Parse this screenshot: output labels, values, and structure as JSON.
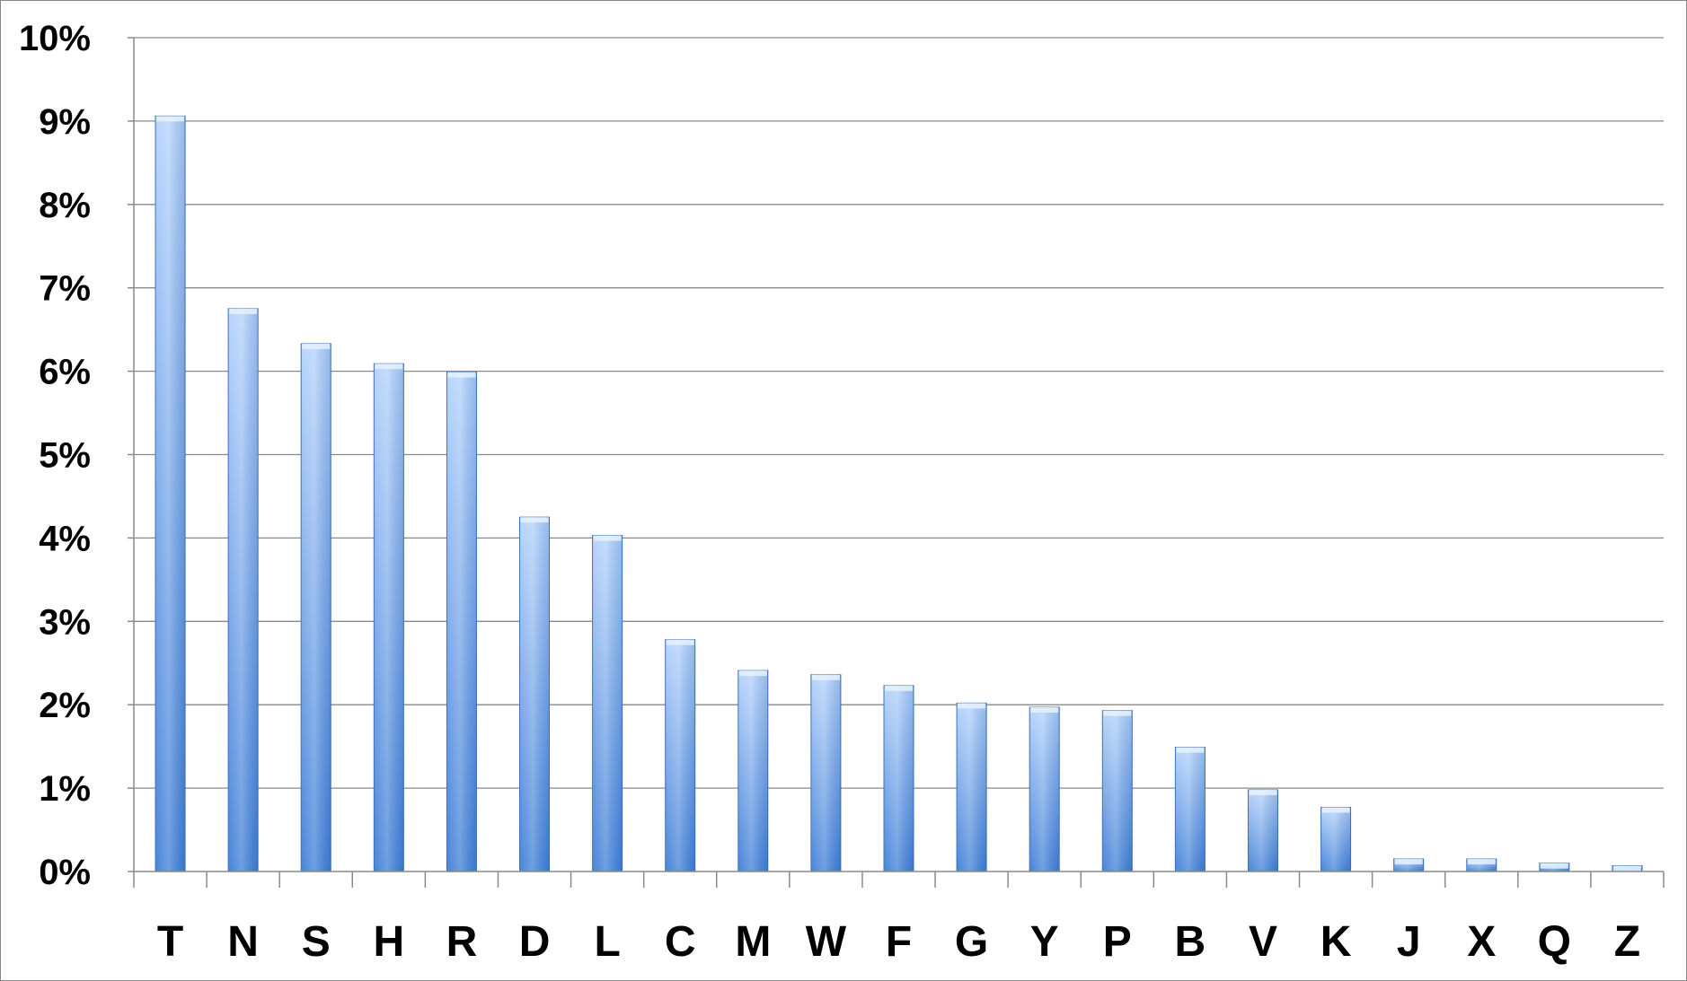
{
  "chart_data": {
    "type": "bar",
    "title": "",
    "xlabel": "",
    "ylabel": "",
    "categories": [
      "T",
      "N",
      "S",
      "H",
      "R",
      "D",
      "L",
      "C",
      "M",
      "W",
      "F",
      "G",
      "Y",
      "P",
      "B",
      "V",
      "K",
      "J",
      "X",
      "Q",
      "Z"
    ],
    "values": [
      9.06,
      6.75,
      6.33,
      6.09,
      5.99,
      4.25,
      4.03,
      2.78,
      2.41,
      2.36,
      2.23,
      2.02,
      1.97,
      1.93,
      1.49,
      0.98,
      0.77,
      0.15,
      0.15,
      0.1,
      0.07
    ],
    "unit": "%",
    "ylim": [
      0,
      10
    ],
    "y_ticks": [
      "0%",
      "1%",
      "2%",
      "3%",
      "4%",
      "5%",
      "6%",
      "7%",
      "8%",
      "9%",
      "10%"
    ],
    "grid": true,
    "legend": "none",
    "colors": {
      "bar_top": "#b4d2fb",
      "bar_bottom": "#3f7ed6",
      "bar_edge": "#3b6db8",
      "gridline": "#8a8a8a",
      "text": "#000000"
    }
  }
}
